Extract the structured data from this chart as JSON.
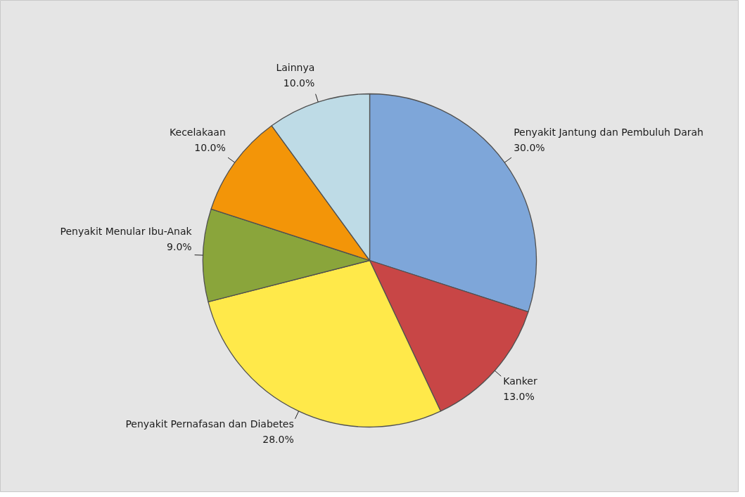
{
  "chart_data": {
    "type": "pie",
    "categories": [
      "Penyakit Jantung dan Pembuluh Darah",
      "Kanker",
      "Penyakit Pernafasan dan Diabetes",
      "Penyakit Menular Ibu-Anak",
      "Kecelakaan",
      "Lainnya"
    ],
    "values": [
      30,
      13,
      28,
      9,
      10,
      10
    ],
    "value_labels": [
      "30.0%",
      "13.0%",
      "28.0%",
      "9.0%",
      "10.0%",
      "10.0%"
    ],
    "colors": [
      "#7ea6d9",
      "#c84646",
      "#ffe94a",
      "#8aa53b",
      "#f39508",
      "#bedbe6"
    ]
  }
}
